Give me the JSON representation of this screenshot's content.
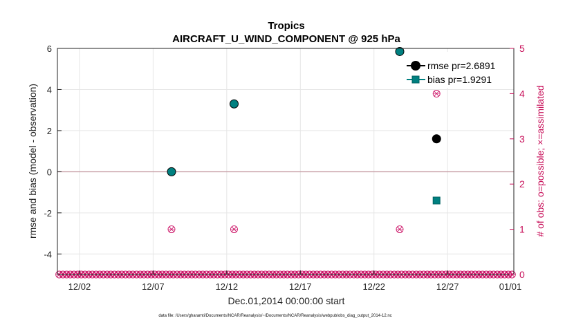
{
  "chart_data": {
    "type": "scatter",
    "title": "Tropics",
    "subtitle": "AIRCRAFT_U_WIND_COMPONENT @ 925 hPa",
    "xlabel": "Dec.01,2014 00:00:00 start",
    "ylabel": "rmse and bias (model - observation)",
    "ylabel_right": "# of obs: o=possible; ×=assimilated",
    "xlim": [
      0.5,
      31.5
    ],
    "ylim": [
      -5,
      6
    ],
    "ylim_right": [
      0,
      5
    ],
    "x_ticks": [
      {
        "value": 2,
        "label": "12/02"
      },
      {
        "value": 7,
        "label": "12/07"
      },
      {
        "value": 12,
        "label": "12/12"
      },
      {
        "value": 17,
        "label": "12/17"
      },
      {
        "value": 22,
        "label": "12/22"
      },
      {
        "value": 27,
        "label": "12/27"
      },
      {
        "value": 32,
        "label": "01/01"
      }
    ],
    "y_ticks": [
      -4,
      -2,
      0,
      2,
      4,
      6
    ],
    "y_ticks_right": [
      0,
      1,
      2,
      3,
      4,
      5
    ],
    "zero_line": 0,
    "legend_position": "top-right",
    "series": [
      {
        "name": "rmse pr=2.6891",
        "axis": "left",
        "marker": "circle",
        "color": "#000000",
        "points": [
          [
            8.25,
            0.0
          ],
          [
            12.5,
            3.3
          ],
          [
            23.75,
            5.85
          ],
          [
            26.25,
            1.6
          ]
        ]
      },
      {
        "name": "bias pr=1.9291",
        "axis": "left",
        "marker": "square",
        "color": "#008080",
        "points": [
          [
            8.25,
            0.0
          ],
          [
            12.5,
            3.3
          ],
          [
            23.75,
            5.85
          ],
          [
            26.25,
            -1.4
          ]
        ]
      },
      {
        "name": "",
        "axis": "right",
        "marker": "circle-x",
        "color": "#cc1166",
        "series_role": "observation counts",
        "x_start": 0.625,
        "x_step": 0.25,
        "x_end": 31.375,
        "default_value": 0,
        "nonzero": [
          [
            8.25,
            1
          ],
          [
            12.5,
            1
          ],
          [
            23.75,
            1
          ],
          [
            26.25,
            4
          ]
        ]
      }
    ]
  },
  "footnote": "data file: /Users/gharamti/Documents/NCAR/Reanalysis/~/Documents/NCAR/Reanalysis/webpub/obs_diag_output_2014-12.nc",
  "colors": {
    "accent_right": "#c8105a",
    "rmse": "#000000",
    "bias": "#008080",
    "obs": "#cc1166",
    "zero_line": "#c9a0a8"
  }
}
